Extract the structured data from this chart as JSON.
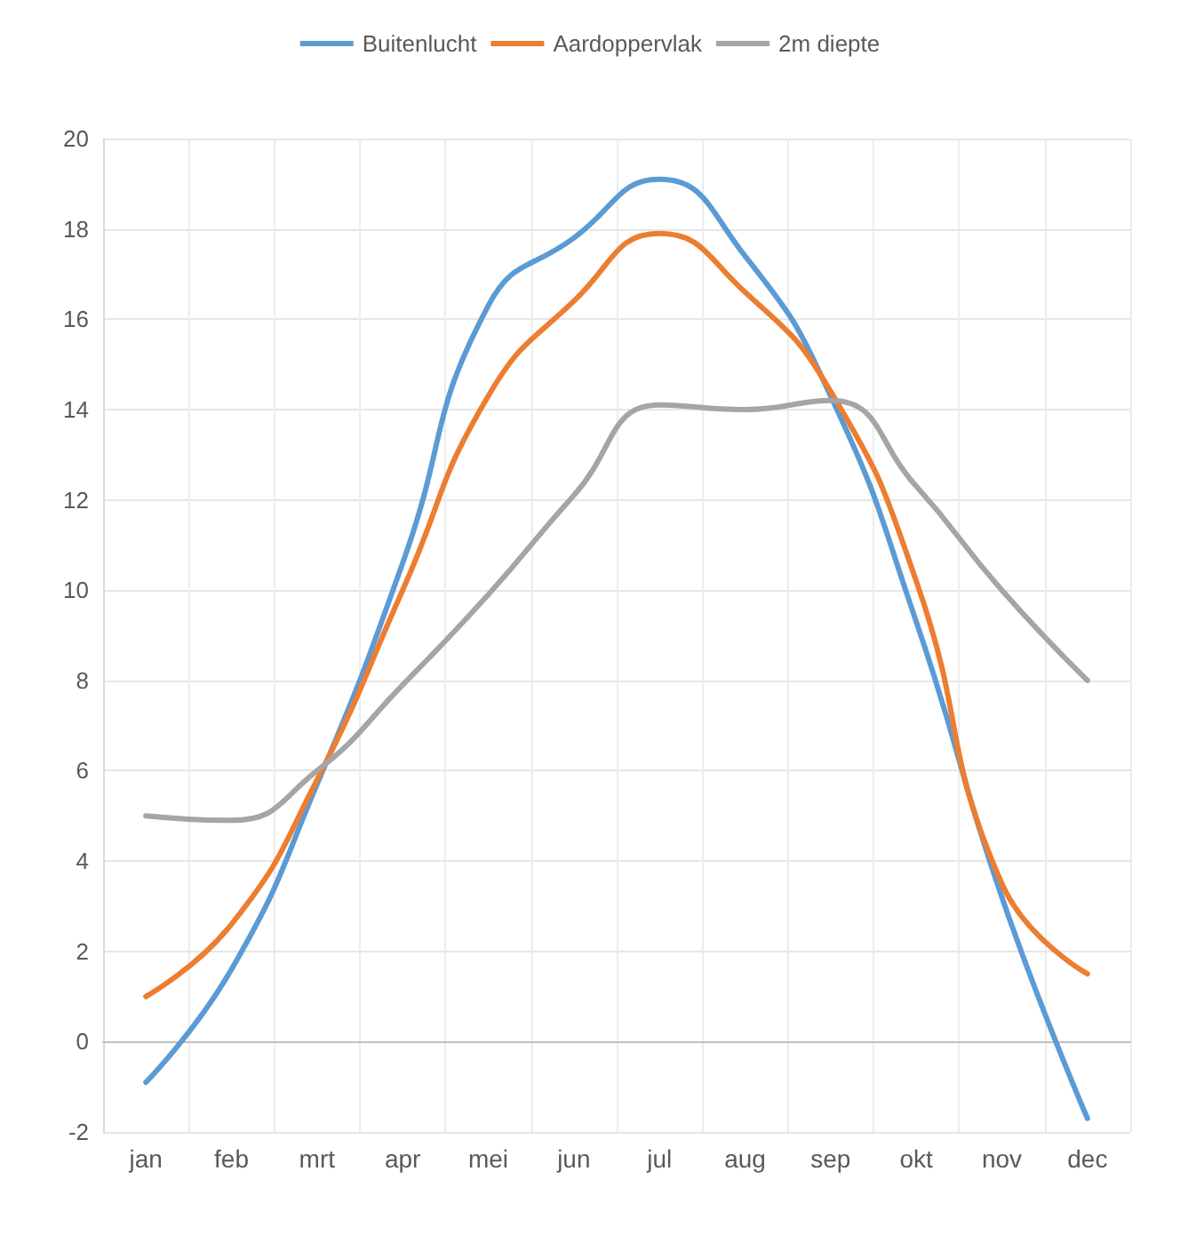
{
  "chart_data": {
    "type": "line",
    "categories": [
      "jan",
      "feb",
      "mrt",
      "apr",
      "mei",
      "jun",
      "jul",
      "aug",
      "sep",
      "okt",
      "nov",
      "dec"
    ],
    "series": [
      {
        "name": "Buitenlucht",
        "color": "#5b9bd5",
        "values": [
          -0.9,
          1.6,
          5.7,
          10.6,
          16.3,
          17.8,
          19.1,
          17.4,
          14.3,
          9.3,
          3.2,
          -1.7
        ]
      },
      {
        "name": "Aardoppervlak",
        "color": "#ed7d31",
        "values": [
          1.0,
          2.6,
          5.8,
          10.0,
          14.3,
          16.4,
          17.9,
          16.6,
          14.4,
          10.2,
          3.5,
          1.5
        ]
      },
      {
        "name": "2m diepte",
        "color": "#a5a5a5",
        "values": [
          5.0,
          4.9,
          6.0,
          7.9,
          9.9,
          12.1,
          14.1,
          14.0,
          14.2,
          12.3,
          10.0,
          8.0
        ]
      }
    ],
    "ylim": [
      -2,
      20
    ],
    "yticks": [
      -2,
      0,
      2,
      4,
      6,
      8,
      10,
      12,
      14,
      16,
      18,
      20
    ],
    "grid": true,
    "legend": "top",
    "marker": "none",
    "line_style": "solid"
  }
}
